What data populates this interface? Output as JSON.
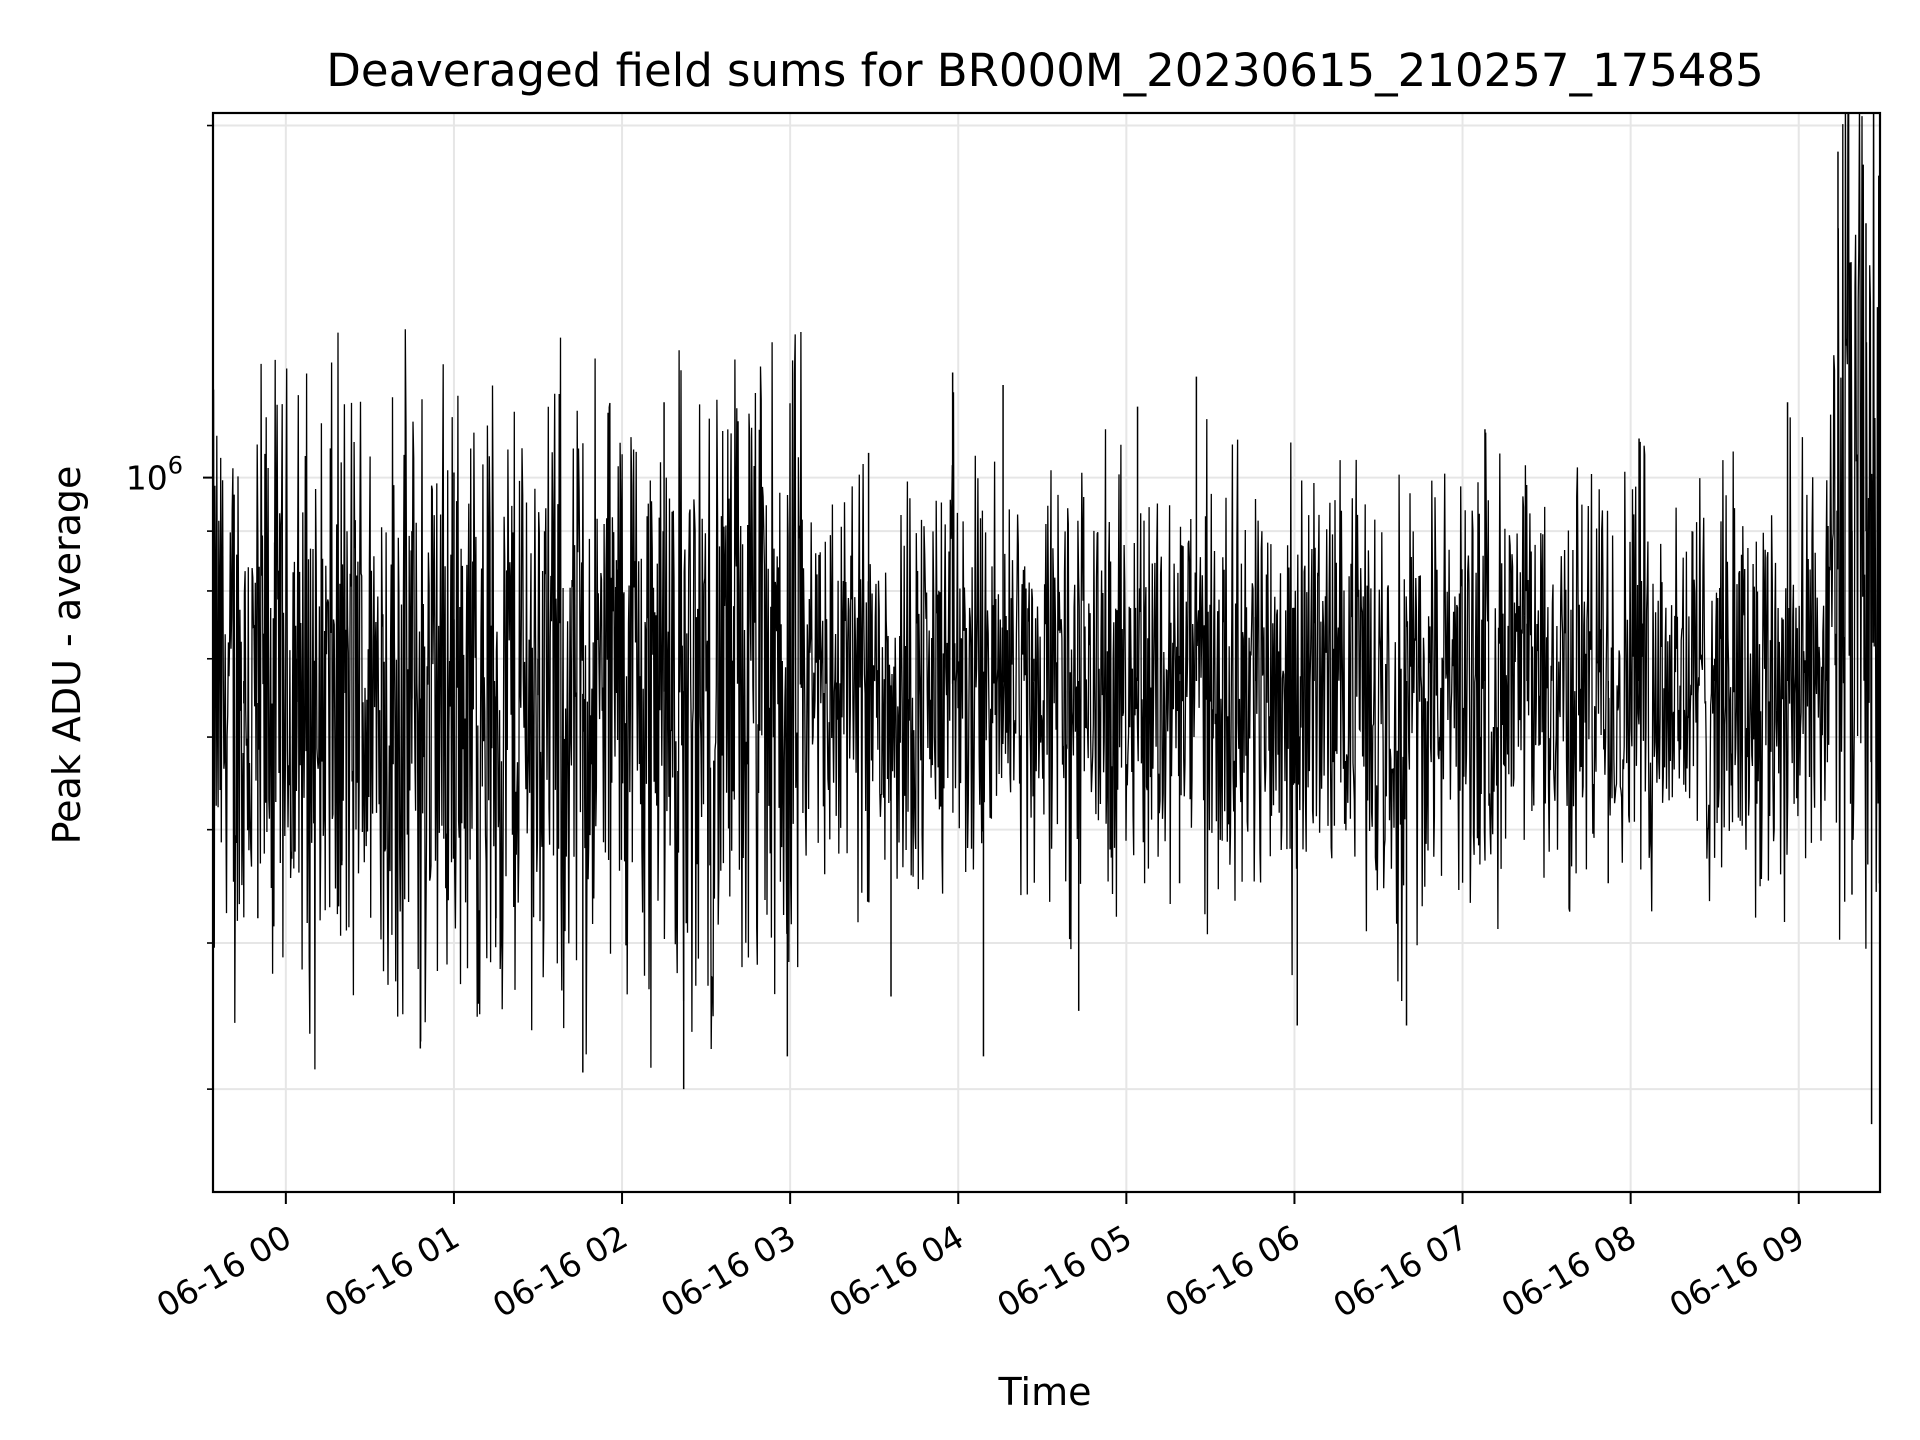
{
  "chart_data": {
    "type": "line",
    "title": "Deaveraged field sums for BR000M_20230615_210257_175485",
    "xlabel": "Time",
    "ylabel": "Peak ADU - average",
    "y_scale": "log",
    "y_tick_label": {
      "base": "10",
      "exponent": "6",
      "value": 1000000
    },
    "ylim": [
      245000,
      2050000
    ],
    "x_range": [
      "2023-06-15 23:34",
      "2023-06-16 09:29"
    ],
    "x_tick_labels": [
      "06-16 00",
      "06-16 01",
      "06-16 02",
      "06-16 03",
      "06-16 04",
      "06-16 05",
      "06-16 06",
      "06-16 07",
      "06-16 08",
      "06-16 09"
    ],
    "x_tick_times": [
      "2023-06-16 00:00",
      "2023-06-16 01:00",
      "2023-06-16 02:00",
      "2023-06-16 03:00",
      "2023-06-16 04:00",
      "2023-06-16 05:00",
      "2023-06-16 06:00",
      "2023-06-16 07:00",
      "2023-06-16 08:00",
      "2023-06-16 09:00"
    ],
    "grid": true,
    "legend": "none",
    "series": [
      {
        "color": "#000000",
        "x": [
          "2023-06-15 23:34",
          "2023-06-15 23:45",
          "2023-06-15 23:50",
          "2023-06-15 23:56",
          "2023-06-16 00:04",
          "2023-06-16 00:20",
          "2023-06-16 00:45",
          "2023-06-16 00:48",
          "2023-06-16 01:00",
          "2023-06-16 01:15",
          "2023-06-16 01:30",
          "2023-06-16 01:46",
          "2023-06-16 01:58",
          "2023-06-16 02:10",
          "2023-06-16 02:15",
          "2023-06-16 02:22",
          "2023-06-16 02:40",
          "2023-06-16 02:59",
          "2023-06-16 03:04",
          "2023-06-16 03:28",
          "2023-06-16 03:36",
          "2023-06-16 03:58",
          "2023-06-16 04:09",
          "2023-06-16 04:16",
          "2023-06-16 04:27",
          "2023-06-16 04:43",
          "2023-06-16 05:04",
          "2023-06-16 05:19",
          "2023-06-16 05:25",
          "2023-06-16 05:46",
          "2023-06-16 06:01",
          "2023-06-16 06:07",
          "2023-06-16 06:40",
          "2023-06-16 07:08",
          "2023-06-16 07:23",
          "2023-06-16 07:52",
          "2023-06-16 08:03",
          "2023-06-16 08:30",
          "2023-06-16 08:56",
          "2023-06-16 09:10",
          "2023-06-16 09:14",
          "2023-06-16 09:19",
          "2023-06-16 09:24",
          "2023-06-16 09:26",
          "2023-06-16 09:29"
        ],
        "y": [
          780000,
          670000,
          420000,
          880000,
          700000,
          470000,
          900000,
          325000,
          1010000,
          420000,
          700000,
          310000,
          850000,
          600000,
          1160000,
          300000,
          700000,
          320000,
          800000,
          1050000,
          360000,
          1230000,
          320000,
          1200000,
          700000,
          350000,
          1150000,
          450000,
          1220000,
          760000,
          340000,
          860000,
          340000,
          1100000,
          750000,
          450000,
          1080000,
          700000,
          1160000,
          750000,
          1900000,
          440000,
          1650000,
          280000,
          1750000
        ]
      }
    ]
  }
}
